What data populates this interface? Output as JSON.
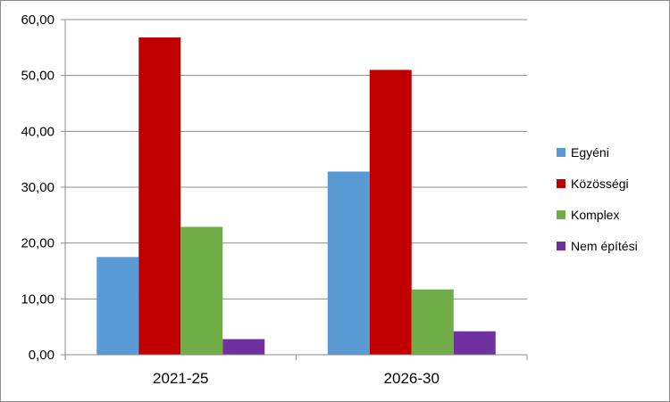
{
  "chart_data": {
    "type": "bar",
    "title": "",
    "xlabel": "",
    "ylabel": "",
    "categories": [
      "2021-25",
      "2026-30"
    ],
    "series": [
      {
        "name": "Egyéni",
        "values": [
          17.5,
          32.8
        ],
        "color": "#5b9bd5"
      },
      {
        "name": "Közösségi",
        "values": [
          56.8,
          51.0
        ],
        "color": "#c00000"
      },
      {
        "name": "Komplex",
        "values": [
          22.9,
          11.7
        ],
        "color": "#70ad47"
      },
      {
        "name": "Nem építési",
        "values": [
          2.8,
          4.2
        ],
        "color": "#7030a0"
      }
    ],
    "ylim": [
      0,
      60
    ],
    "yticks": [
      "0,00",
      "10,00",
      "20,00",
      "30,00",
      "40,00",
      "50,00",
      "60,00"
    ],
    "grid": true,
    "legend_position": "right"
  }
}
